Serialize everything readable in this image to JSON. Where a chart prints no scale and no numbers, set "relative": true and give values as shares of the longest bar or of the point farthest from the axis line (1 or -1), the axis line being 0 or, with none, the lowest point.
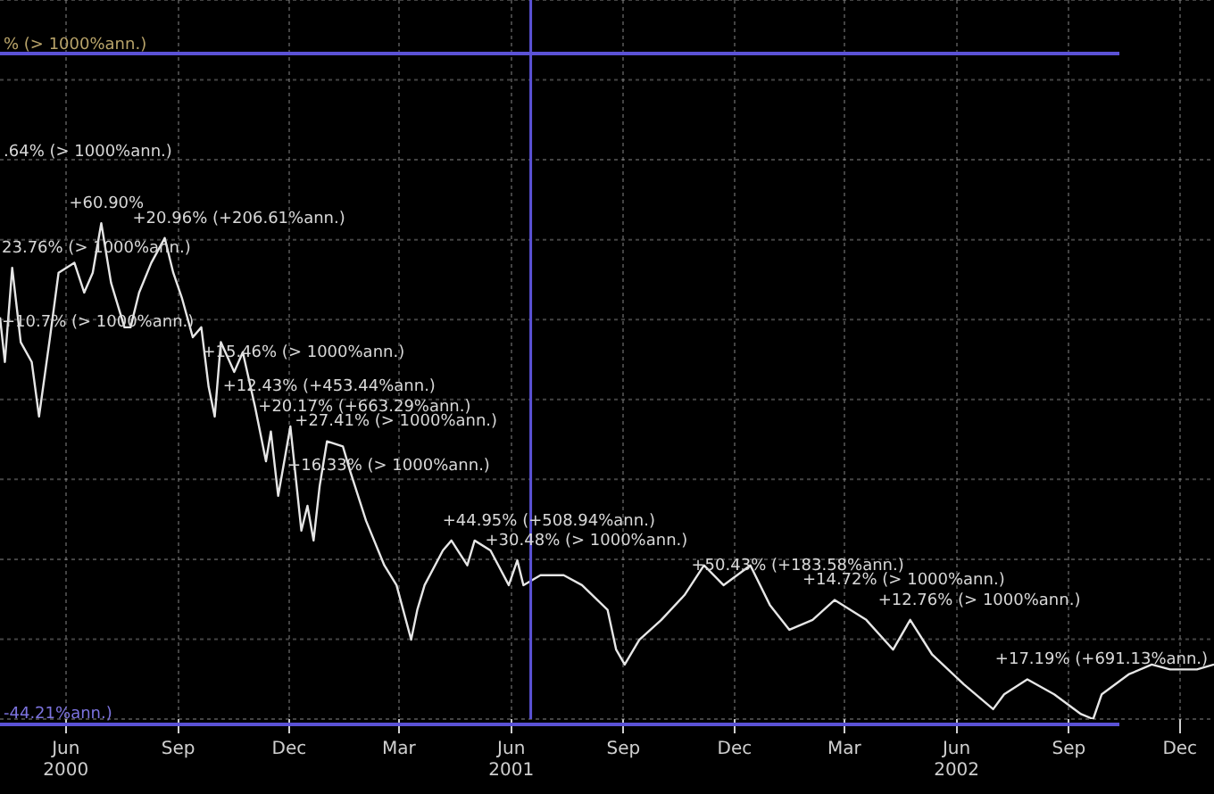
{
  "chart_data": {
    "type": "line",
    "relative": true,
    "grid": true,
    "legend": false,
    "marker": "none",
    "line_style": "solid",
    "xlim": [
      "2000-04-08",
      "2002-12-29"
    ],
    "xticks": [
      {
        "value": "2000-06-01",
        "label": "Jun\n2000"
      },
      {
        "value": "2000-09-01",
        "label": "Sep"
      },
      {
        "value": "2000-12-01",
        "label": "Dec"
      },
      {
        "value": "2001-03-01",
        "label": "Mar"
      },
      {
        "value": "2001-06-01",
        "label": "Jun\n2001"
      },
      {
        "value": "2001-09-01",
        "label": "Sep"
      },
      {
        "value": "2001-12-01",
        "label": "Dec"
      },
      {
        "value": "2002-03-01",
        "label": "Mar"
      },
      {
        "value": "2002-06-01",
        "label": "Jun\n2002"
      },
      {
        "value": "2002-09-01",
        "label": "Sep"
      },
      {
        "value": "2002-12-01",
        "label": "Dec"
      }
    ],
    "x": [
      "2000-04-08",
      "2000-04-12",
      "2000-04-18",
      "2000-04-25",
      "2000-05-04",
      "2000-05-10",
      "2000-05-19",
      "2000-05-26",
      "2000-06-08",
      "2000-06-16",
      "2000-06-23",
      "2000-06-30",
      "2000-07-08",
      "2000-07-19",
      "2000-07-24",
      "2000-07-31",
      "2000-08-10",
      "2000-08-21",
      "2000-08-28",
      "2000-09-04",
      "2000-09-13",
      "2000-09-20",
      "2000-09-26",
      "2000-10-01",
      "2000-10-06",
      "2000-10-17",
      "2000-10-24",
      "2000-11-03",
      "2000-11-12",
      "2000-11-16",
      "2000-11-22",
      "2000-12-02",
      "2000-12-11",
      "2000-12-16",
      "2000-12-21",
      "2000-12-26",
      "2001-01-01",
      "2001-01-14",
      "2001-01-20",
      "2001-02-02",
      "2001-02-17",
      "2001-02-27",
      "2001-03-11",
      "2001-03-16",
      "2001-03-22",
      "2001-04-06",
      "2001-04-13",
      "2001-04-26",
      "2001-05-02",
      "2001-05-15",
      "2001-05-30",
      "2001-06-06",
      "2001-06-11",
      "2001-06-25",
      "2001-07-14",
      "2001-07-29",
      "2001-08-19",
      "2001-08-26",
      "2001-09-02",
      "2001-09-14",
      "2001-10-02",
      "2001-10-21",
      "2001-11-06",
      "2001-11-22",
      "2001-12-14",
      "2001-12-30",
      "2002-01-15",
      "2002-02-03",
      "2002-02-21",
      "2002-03-19",
      "2002-04-10",
      "2002-04-24",
      "2002-05-12",
      "2002-06-07",
      "2002-07-01",
      "2002-07-10",
      "2002-07-29",
      "2002-08-20",
      "2002-09-11",
      "2002-09-21",
      "2002-09-28",
      "2002-10-20",
      "2002-11-08",
      "2002-11-23",
      "2002-12-15",
      "2002-12-29"
    ],
    "series": [
      {
        "color": "#e6e6e6",
        "values": [
          0.81,
          0.72,
          0.91,
          0.76,
          0.72,
          0.61,
          0.77,
          0.9,
          0.92,
          0.86,
          0.9,
          1,
          0.88,
          0.79,
          0.79,
          0.86,
          0.92,
          0.97,
          0.9,
          0.85,
          0.77,
          0.79,
          0.67,
          0.61,
          0.76,
          0.7,
          0.74,
          0.63,
          0.52,
          0.58,
          0.45,
          0.59,
          0.38,
          0.43,
          0.36,
          0.47,
          0.56,
          0.55,
          0.5,
          0.4,
          0.31,
          0.27,
          0.16,
          0.22,
          0.27,
          0.34,
          0.36,
          0.31,
          0.36,
          0.34,
          0.27,
          0.32,
          0.27,
          0.29,
          0.29,
          0.27,
          0.22,
          0.14,
          0.11,
          0.16,
          0.2,
          0.25,
          0.31,
          0.27,
          0.31,
          0.23,
          0.18,
          0.2,
          0.24,
          0.2,
          0.14,
          0.2,
          0.13,
          0.07,
          0.02,
          0.05,
          0.08,
          0.05,
          0.01,
          0,
          0.05,
          0.09,
          0.11,
          0.1,
          0.1,
          0.11
        ]
      }
    ],
    "ref_lines": [
      {
        "axis": "x",
        "value": "2001-06-17",
        "color": "#5b52d6"
      }
    ],
    "annotations": [
      "% (> 1000%ann.)",
      ".64% (> 1000%ann.)",
      "-44.21%ann.)",
      {
        "text": "+60.90%",
        "x": "2000-06-30",
        "y": 1
      },
      {
        "text": "+20.96% (+206.61%ann.)",
        "x": "2000-08-21",
        "y": 0.97
      },
      {
        "text": "23.76% (> 1000%ann.)",
        "x": "2000-04-18",
        "y": 0.91
      },
      {
        "text": "+10.7% (> 1000%ann.)",
        "x": "2000-04-25",
        "y": 0.76
      },
      {
        "text": "+15.46% (> 1000%ann.)",
        "x": "2000-10-17",
        "y": 0.7
      },
      {
        "text": "+12.43% (+453.44%ann.)",
        "x": "2000-11-03",
        "y": 0.63
      },
      {
        "text": "+20.17% (+663.29%ann.)",
        "x": "2000-12-02",
        "y": 0.59
      },
      {
        "text": "+27.41% (> 1000%ann.)",
        "x": "2001-01-01",
        "y": 0.56
      },
      {
        "text": "+16.33% (> 1000%ann.)",
        "x": "2000-12-26",
        "y": 0.47
      },
      {
        "text": "+44.95% (+508.94%ann.)",
        "x": "2001-05-02",
        "y": 0.36
      },
      {
        "text": "+30.48% (> 1000%ann.)",
        "x": "2001-06-06",
        "y": 0.32
      },
      {
        "text": "+50.43% (+183.58%ann.)",
        "x": "2001-11-22",
        "y": 0.27
      },
      {
        "text": "+14.72% (> 1000%ann.)",
        "x": "2002-02-21",
        "y": 0.24
      },
      {
        "text": "+12.76% (> 1000%ann.)",
        "x": "2002-04-24",
        "y": 0.2
      },
      {
        "text": "+17.19% (+691.13%ann.)",
        "x": "2002-07-29",
        "y": 0.08
      }
    ]
  }
}
